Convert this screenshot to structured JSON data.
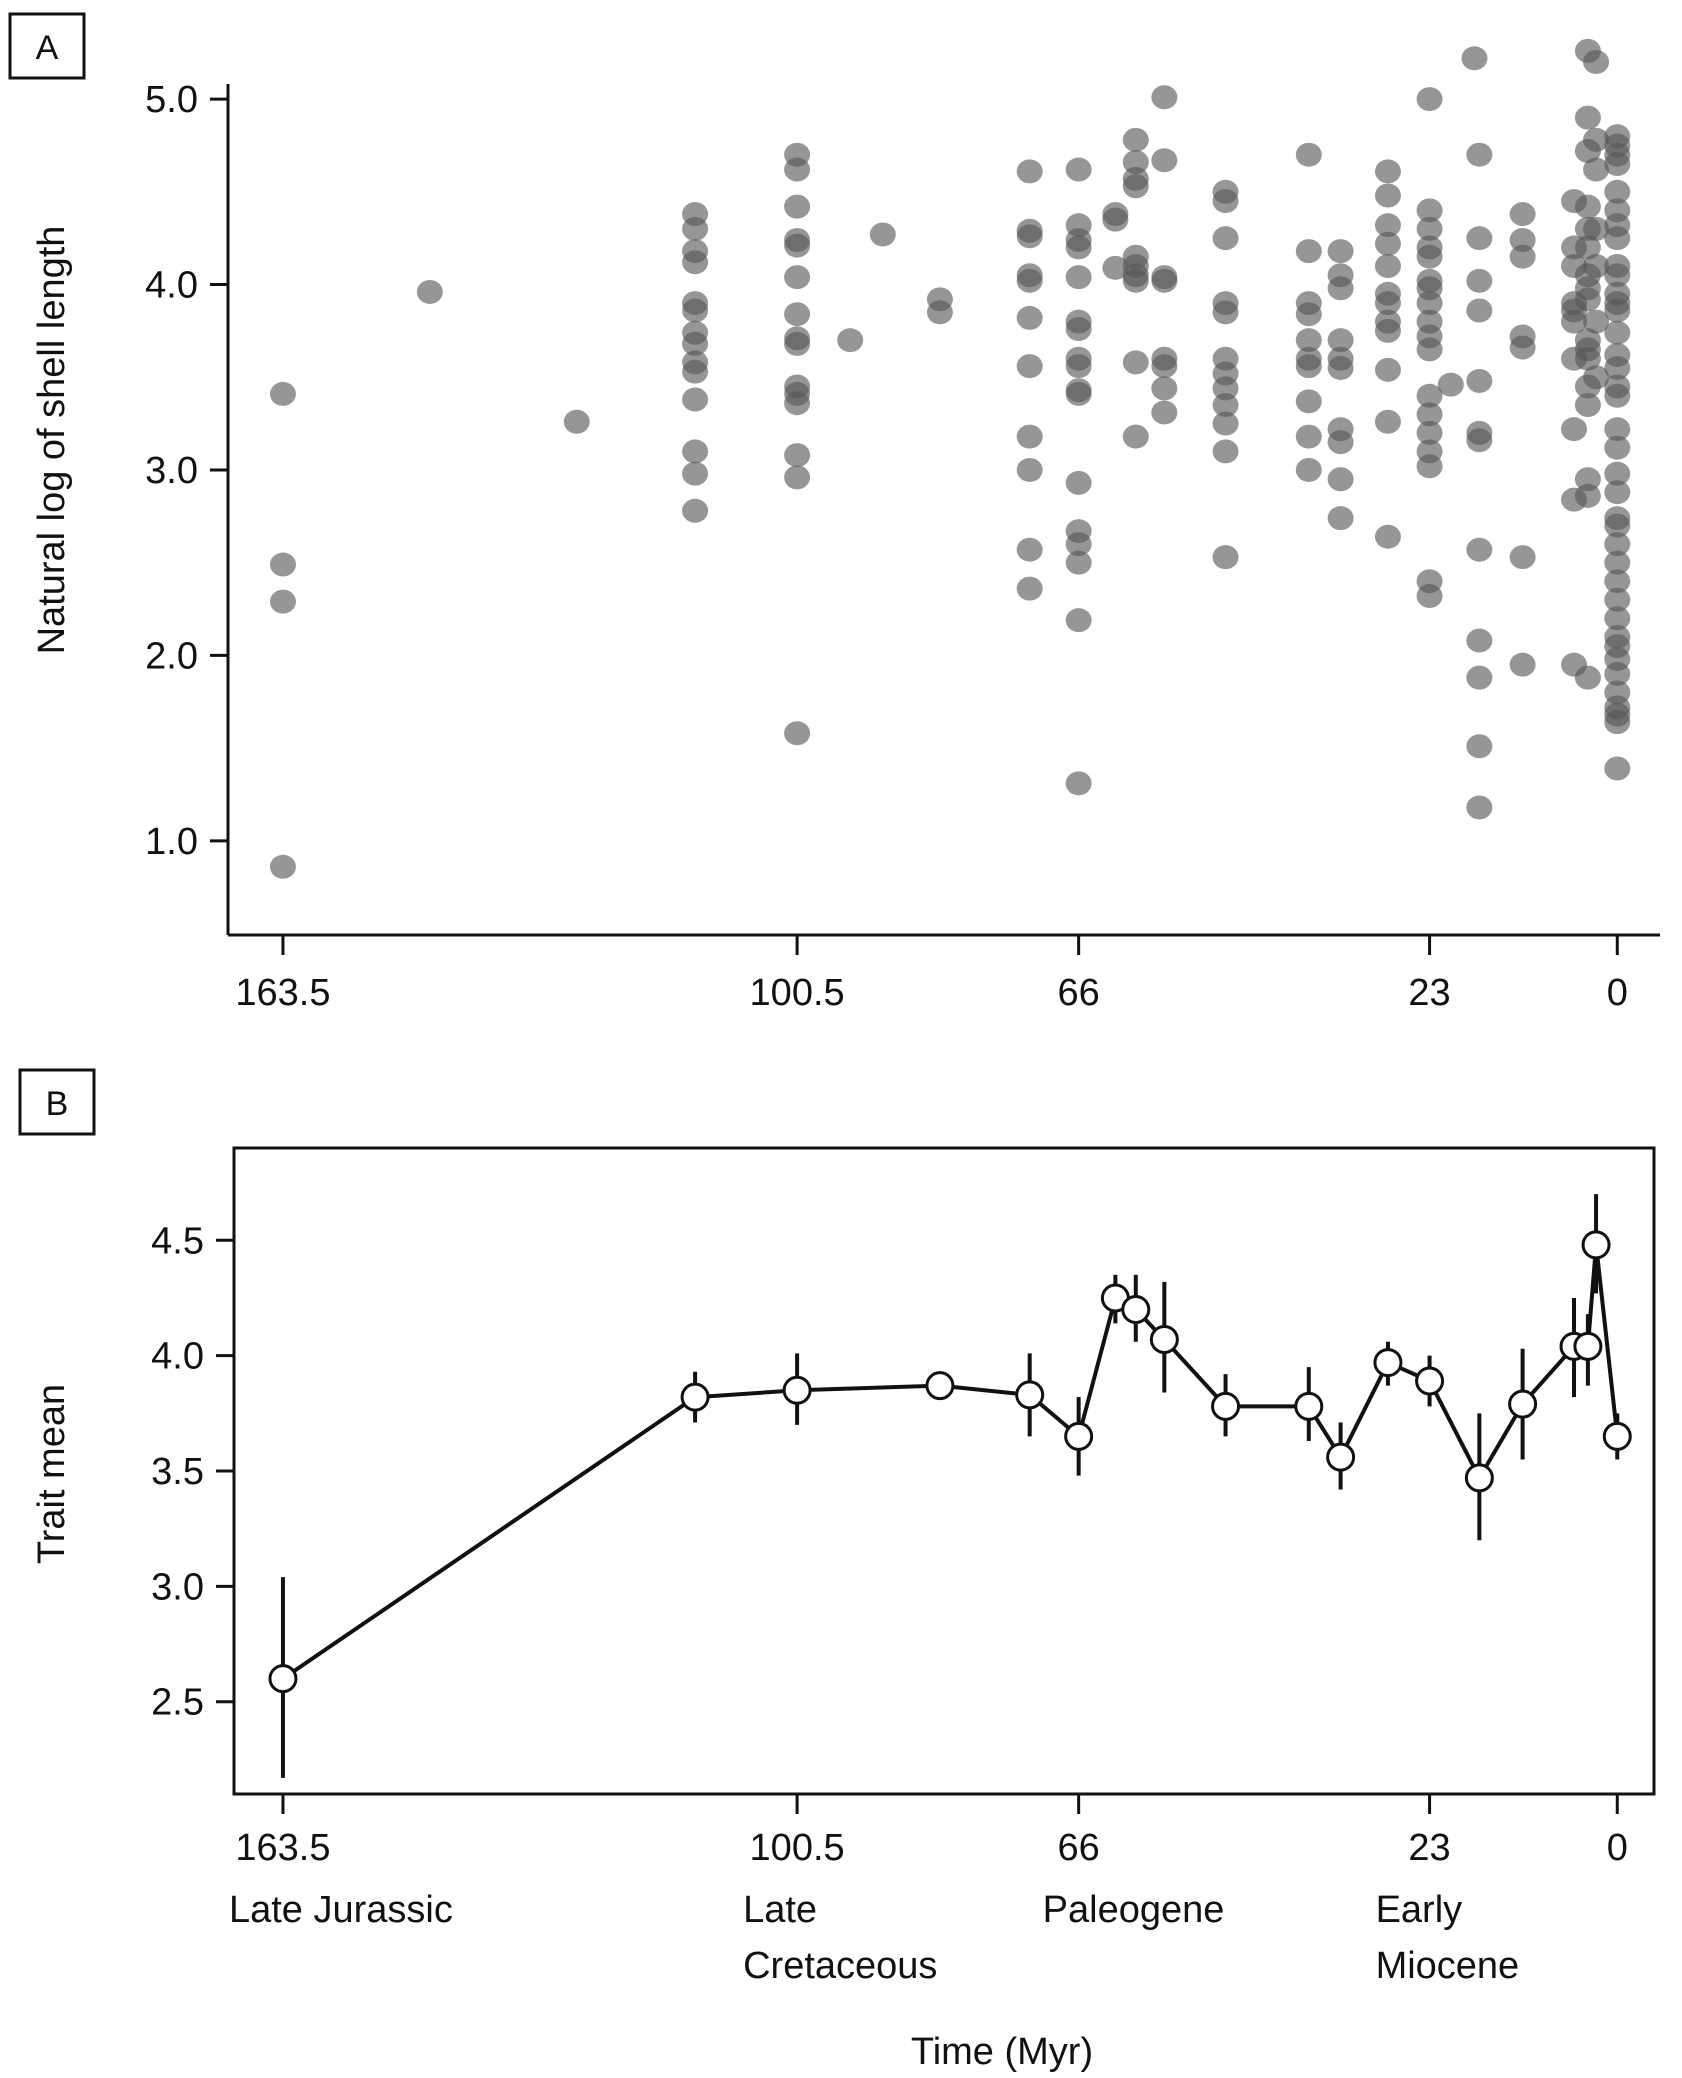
{
  "chart_data": [
    {
      "panel": "A",
      "type": "scatter",
      "ylabel": "Natural log of shell length",
      "xlabel": "",
      "x_ticks": [
        "163.5",
        "100.5",
        "66",
        "23",
        "0"
      ],
      "x_tick_values": [
        163.5,
        100.5,
        66,
        23,
        0
      ],
      "y_ticks": [
        "1.0",
        "2.0",
        "3.0",
        "4.0",
        "5.0"
      ],
      "y_tick_values": [
        1,
        2,
        3,
        4,
        5
      ],
      "xlim": [
        169.5,
        -4.5
      ],
      "ylim": [
        0.6,
        5.2
      ],
      "x_reversed": true,
      "point_color": "#555555",
      "columns": [
        {
          "x": 163.5,
          "y": [
            3.41,
            2.49,
            2.29,
            0.86
          ]
        },
        {
          "x": 145.5,
          "y": [
            3.96
          ]
        },
        {
          "x": 127.5,
          "y": [
            3.26
          ]
        },
        {
          "x": 113,
          "y": [
            4.38,
            4.3,
            4.18,
            4.12,
            3.9,
            3.86,
            3.74,
            3.68,
            3.58,
            3.53,
            3.38,
            3.1,
            2.98,
            2.78
          ]
        },
        {
          "x": 100.5,
          "y": [
            4.7,
            4.62,
            4.42,
            4.24,
            4.21,
            4.04,
            3.84,
            3.71,
            3.68,
            3.45,
            3.41,
            3.36,
            3.08,
            2.96,
            1.58
          ]
        },
        {
          "x": 94,
          "y": [
            3.7
          ]
        },
        {
          "x": 90,
          "y": [
            4.27
          ]
        },
        {
          "x": 83,
          "y": [
            3.92,
            3.85
          ]
        },
        {
          "x": 72,
          "y": [
            4.61,
            4.29,
            4.26,
            4.05,
            4.02,
            3.82,
            3.56,
            3.18,
            3.0,
            2.57,
            2.36
          ]
        },
        {
          "x": 66,
          "y": [
            4.62,
            4.32,
            4.24,
            4.2,
            4.04,
            3.8,
            3.76,
            3.6,
            3.56,
            3.43,
            3.41,
            2.93,
            2.67,
            2.6,
            2.5,
            2.19,
            1.31
          ]
        },
        {
          "x": 61.5,
          "y": [
            4.38,
            4.35,
            4.09
          ]
        },
        {
          "x": 59,
          "y": [
            4.78,
            4.66,
            4.57,
            4.53,
            4.15,
            4.1,
            4.05,
            4.02,
            3.58,
            3.18
          ]
        },
        {
          "x": 55.5,
          "y": [
            5.01,
            4.67,
            4.04,
            4.02,
            3.6,
            3.56,
            3.44,
            3.31
          ]
        },
        {
          "x": 48,
          "y": [
            4.5,
            4.45,
            4.25,
            3.9,
            3.85,
            3.6,
            3.52,
            3.44,
            3.35,
            3.25,
            3.1,
            2.53
          ]
        },
        {
          "x": 37.8,
          "y": [
            4.7,
            4.18,
            3.9,
            3.84,
            3.7,
            3.6,
            3.56,
            3.37,
            3.18,
            3.0
          ]
        },
        {
          "x": 33.9,
          "y": [
            4.18,
            4.05,
            3.98,
            3.7,
            3.6,
            3.55,
            3.22,
            3.15,
            2.95,
            2.74
          ]
        },
        {
          "x": 28.1,
          "y": [
            4.61,
            4.48,
            4.32,
            4.22,
            4.1,
            3.95,
            3.9,
            3.8,
            3.75,
            3.54,
            3.26,
            2.64
          ]
        },
        {
          "x": 23,
          "y": [
            5.0,
            4.4,
            4.3,
            4.2,
            4.15,
            4.02,
            3.98,
            3.9,
            3.8,
            3.72,
            3.65,
            3.4,
            3.3,
            3.2,
            3.1,
            3.02,
            2.4,
            2.32
          ]
        },
        {
          "x": 20.4,
          "y": [
            3.46
          ]
        },
        {
          "x": 17.5,
          "y": [
            5.22
          ]
        },
        {
          "x": 16.9,
          "y": [
            4.7,
            4.25,
            4.02,
            3.86,
            3.48,
            3.2,
            3.16,
            2.57,
            2.08,
            1.88,
            1.51,
            1.18
          ]
        },
        {
          "x": 11.6,
          "y": [
            4.38,
            4.24,
            4.15,
            3.72,
            3.66,
            2.53,
            1.95
          ]
        },
        {
          "x": 5.3,
          "y": [
            4.45,
            4.2,
            4.1,
            3.9,
            3.86,
            3.8,
            3.6,
            3.22,
            2.84,
            1.95
          ]
        },
        {
          "x": 3.6,
          "y": [
            5.26,
            4.9,
            4.72,
            4.42,
            4.3,
            4.2,
            4.05,
            3.98,
            3.92,
            3.7,
            3.65,
            3.6,
            3.45,
            3.35,
            2.95,
            2.86,
            1.88
          ]
        },
        {
          "x": 2.6,
          "y": [
            5.2,
            4.78,
            4.62,
            4.3,
            4.1,
            3.8,
            3.5
          ]
        },
        {
          "x": 0,
          "y": [
            4.8,
            4.75,
            4.7,
            4.65,
            4.5,
            4.4,
            4.32,
            4.25,
            4.1,
            4.05,
            3.95,
            3.9,
            3.86,
            3.74,
            3.62,
            3.55,
            3.45,
            3.4,
            3.22,
            3.12,
            2.98,
            2.88,
            2.74,
            2.7,
            2.6,
            2.5,
            2.4,
            2.3,
            2.2,
            2.1,
            2.05,
            1.98,
            1.9,
            1.8,
            1.72,
            1.68,
            1.64,
            1.39
          ]
        }
      ]
    },
    {
      "panel": "B",
      "type": "line",
      "ylabel": "Trait mean",
      "xlabel": "Time (Myr)",
      "x_ticks": [
        "163.5",
        "100.5",
        "66",
        "23",
        "0"
      ],
      "x_tick_values": [
        163.5,
        100.5,
        66,
        23,
        0
      ],
      "y_ticks": [
        "2.5",
        "3.0",
        "3.5",
        "4.0",
        "4.5"
      ],
      "y_tick_values": [
        2.5,
        3.0,
        3.5,
        4.0,
        4.5
      ],
      "xlim": [
        169.5,
        -4.5
      ],
      "ylim": [
        2.1,
        4.9
      ],
      "x_reversed": true,
      "marker_fill": "#ffffff",
      "line_color": "#111111",
      "points": [
        {
          "x": 163.5,
          "y": 2.6,
          "lo": 2.17,
          "hi": 3.04
        },
        {
          "x": 113,
          "y": 3.82,
          "lo": 3.71,
          "hi": 3.93
        },
        {
          "x": 100.5,
          "y": 3.85,
          "lo": 3.7,
          "hi": 4.01
        },
        {
          "x": 83,
          "y": 3.87,
          "lo": 3.83,
          "hi": 3.91
        },
        {
          "x": 72,
          "y": 3.83,
          "lo": 3.65,
          "hi": 4.01
        },
        {
          "x": 66,
          "y": 3.65,
          "lo": 3.48,
          "hi": 3.82
        },
        {
          "x": 61.5,
          "y": 4.25,
          "lo": 4.14,
          "hi": 4.35
        },
        {
          "x": 59,
          "y": 4.2,
          "lo": 4.06,
          "hi": 4.35
        },
        {
          "x": 55.5,
          "y": 4.07,
          "lo": 3.84,
          "hi": 4.32
        },
        {
          "x": 48,
          "y": 3.78,
          "lo": 3.65,
          "hi": 3.92
        },
        {
          "x": 37.8,
          "y": 3.78,
          "lo": 3.63,
          "hi": 3.95
        },
        {
          "x": 33.9,
          "y": 3.56,
          "lo": 3.42,
          "hi": 3.71
        },
        {
          "x": 28.1,
          "y": 3.97,
          "lo": 3.87,
          "hi": 4.06
        },
        {
          "x": 23,
          "y": 3.89,
          "lo": 3.78,
          "hi": 4.0
        },
        {
          "x": 16.9,
          "y": 3.47,
          "lo": 3.2,
          "hi": 3.75
        },
        {
          "x": 11.6,
          "y": 3.79,
          "lo": 3.55,
          "hi": 4.03
        },
        {
          "x": 5.3,
          "y": 4.04,
          "lo": 3.82,
          "hi": 4.25
        },
        {
          "x": 3.6,
          "y": 4.04,
          "lo": 3.87,
          "hi": 4.18
        },
        {
          "x": 2.6,
          "y": 4.48,
          "lo": 4.27,
          "hi": 4.7
        },
        {
          "x": 0,
          "y": 3.65,
          "lo": 3.55,
          "hi": 3.75
        }
      ],
      "period_labels": [
        {
          "x": 163.5,
          "lines": [
            "Late Jurassic"
          ]
        },
        {
          "x": 100.5,
          "lines": [
            "Late",
            "Cretaceous"
          ]
        },
        {
          "x": 66,
          "lines": [
            "Paleogene"
          ]
        },
        {
          "x": 23,
          "lines": [
            "Early",
            "Miocene"
          ]
        }
      ]
    }
  ]
}
